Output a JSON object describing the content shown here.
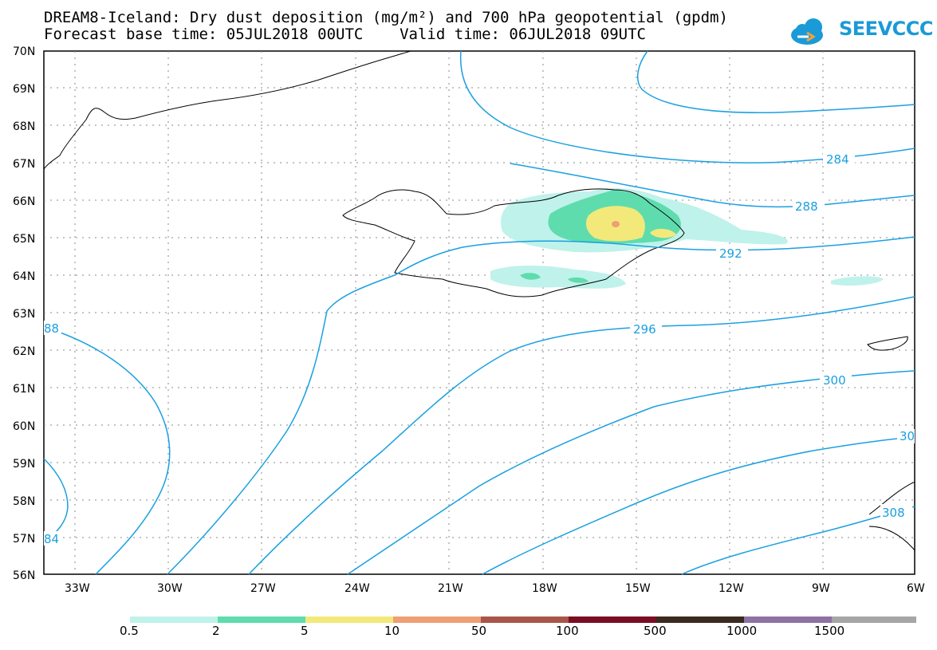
{
  "header": {
    "title_line1": "DREAM8-Iceland: Dry dust deposition (mg/m²) and 700 hPa geopotential (gpdm)",
    "title_line2": "Forecast base time: 05JUL2018 00UTC    Valid time: 06JUL2018 09UTC",
    "logo_text": "SEEVCCC"
  },
  "map": {
    "lat_labels": [
      "70N",
      "69N",
      "68N",
      "67N",
      "66N",
      "65N",
      "64N",
      "63N",
      "62N",
      "61N",
      "60N",
      "59N",
      "58N",
      "57N",
      "56N"
    ],
    "lon_labels": [
      "33W",
      "30W",
      "27W",
      "24W",
      "21W",
      "18W",
      "15W",
      "12W",
      "9W",
      "6W"
    ],
    "contour_labels": [
      "284",
      "288",
      "292",
      "296",
      "300",
      "30",
      "308",
      "88",
      "84"
    ],
    "contour_color": "#1aa0e0",
    "coast_color": "#000000",
    "grid_color": "#888888"
  },
  "legend": {
    "colors": [
      "#bff2ea",
      "#5fdcae",
      "#f3e97a",
      "#ee9f74",
      "#a8564a",
      "#7a0d24",
      "#3b2a1e",
      "#8e72a4",
      "#a6a6a6"
    ],
    "labels": [
      "0.5",
      "2",
      "5",
      "10",
      "50",
      "100",
      "500",
      "1000",
      "1500"
    ]
  }
}
